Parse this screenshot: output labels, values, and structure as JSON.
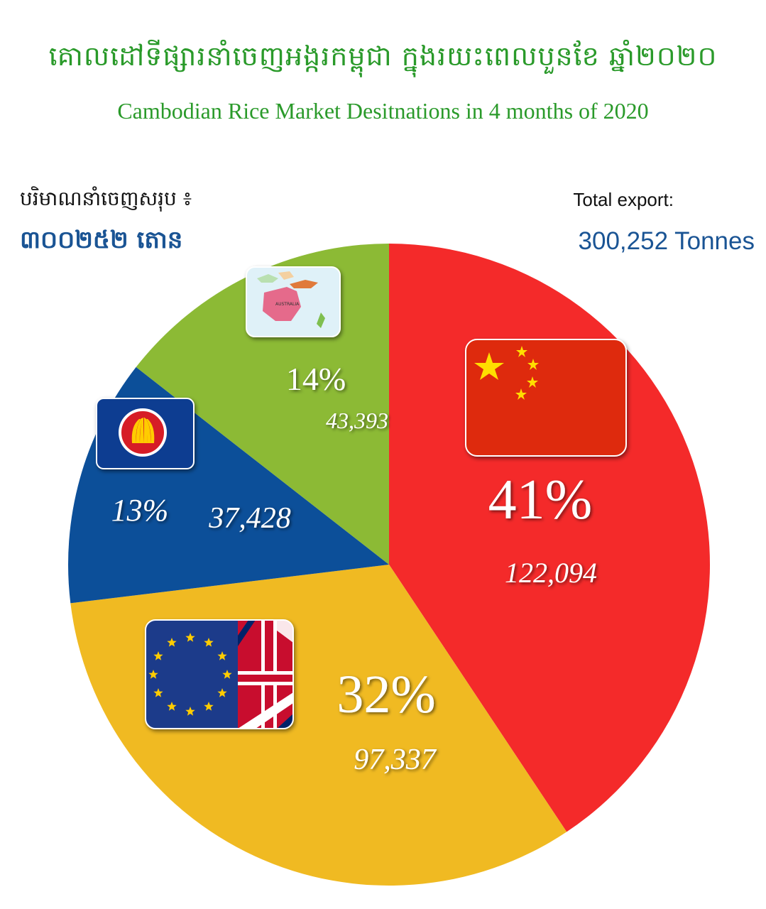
{
  "header": {
    "title_km": "គោលដៅទីផ្សារនាំចេញអង្ករកម្ពុជា ក្នុងរយះពេលបួនខែ ឆ្នាំ២០២០",
    "title_en": "Cambodian Rice Market  Desitnations in 4 months of 2020"
  },
  "totals": {
    "km_label": "បរិមាណនាំចេញសរុប ៖",
    "km_value": "៣០០២៥២ តោន",
    "en_label": "Total export:",
    "en_value": "300,252 Tonnes"
  },
  "icons": {
    "china": "china-flag-icon",
    "eu_uk": "eu-uk-flag-icon",
    "asean": "asean-emblem-icon",
    "oceania": "oceania-map-icon",
    "oceania_map_text": "AUSTRALIA"
  },
  "chart_data": {
    "type": "pie",
    "unit": "Tonnes",
    "total": 300252,
    "slices": [
      {
        "region": "China",
        "percent": 41,
        "percent_label": "41%",
        "value": 122094,
        "value_label": "122,094",
        "color": "#f42a2a"
      },
      {
        "region": "EU / UK",
        "percent": 32,
        "percent_label": "32%",
        "value": 97337,
        "value_label": "97,337",
        "color": "#f0ba22"
      },
      {
        "region": "ASEAN",
        "percent": 13,
        "percent_label": "13%",
        "value": 37428,
        "value_label": "37,428",
        "color": "#0c4f99"
      },
      {
        "region": "Oceania / Other",
        "percent": 14,
        "percent_label": "14%",
        "value": 43393,
        "value_label": "43,393",
        "color": "#8cba35"
      }
    ]
  }
}
